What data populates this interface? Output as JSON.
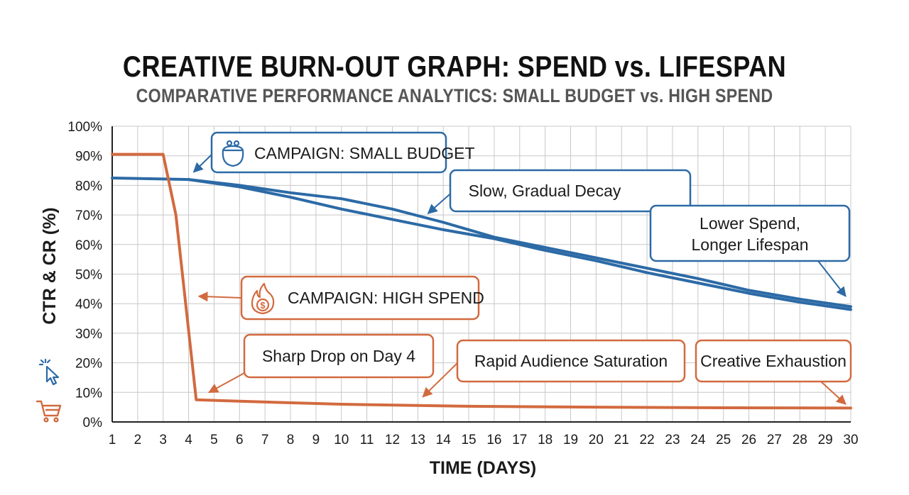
{
  "title": "CREATIVE BURN-OUT GRAPH: SPEND vs. LIFESPAN",
  "subtitle": "COMPARATIVE PERFORMANCE ANALYTICS: SMALL BUDGET vs. HIGH SPEND",
  "colors": {
    "small_budget": "#2c6aa6",
    "high_spend": "#d26a3f",
    "grid": "#c8c8c8",
    "axis": "#222222"
  },
  "icons": {
    "small_budget_callout": "coin-purse-icon",
    "high_spend_callout": "flame-dollar-icon",
    "side_click": "cursor-click-icon",
    "side_cart": "shopping-cart-icon"
  },
  "chart_data": {
    "type": "line",
    "title": "CREATIVE BURN-OUT GRAPH: SPEND vs. LIFESPAN",
    "subtitle": "COMPARATIVE PERFORMANCE ANALYTICS: SMALL BUDGET vs. HIGH SPEND",
    "xlabel": "TIME (DAYS)",
    "ylabel": "CTR & CR (%)",
    "xlim": [
      1,
      30
    ],
    "ylim": [
      0,
      100
    ],
    "x_ticks": [
      1,
      2,
      3,
      4,
      5,
      6,
      7,
      8,
      9,
      10,
      11,
      12,
      13,
      14,
      15,
      16,
      17,
      18,
      19,
      20,
      21,
      22,
      23,
      24,
      25,
      26,
      27,
      28,
      29,
      30
    ],
    "y_ticks": [
      0,
      10,
      20,
      30,
      40,
      50,
      60,
      70,
      80,
      90,
      100
    ],
    "y_tick_labels": [
      "0%",
      "10%",
      "20%",
      "30%",
      "40%",
      "50%",
      "60%",
      "70%",
      "80%",
      "90%",
      "100%"
    ],
    "grid": true,
    "series": [
      {
        "key": "small_budget_a",
        "color": "#2c6aa6",
        "x": [
          1,
          4,
          6,
          8,
          10,
          12,
          14,
          16,
          18,
          20,
          22,
          24,
          26,
          28,
          30
        ],
        "y": [
          82.5,
          82,
          79.5,
          76,
          72,
          68.5,
          65,
          62,
          58,
          54.5,
          50.5,
          47,
          43.5,
          40.5,
          38
        ]
      },
      {
        "key": "small_budget_b",
        "color": "#2c6aa6",
        "x": [
          4,
          6,
          8,
          10,
          12,
          14,
          16,
          18,
          20,
          22,
          24,
          26,
          28,
          30
        ],
        "y": [
          82,
          80,
          77.5,
          75.5,
          72,
          67.5,
          62.5,
          59,
          55.5,
          52,
          48.5,
          44.5,
          41.5,
          39
        ]
      },
      {
        "key": "high_spend",
        "color": "#d26a3f",
        "x": [
          1,
          3,
          3.5,
          4.3,
          6,
          10,
          15,
          20,
          25,
          30
        ],
        "y": [
          90.5,
          90.5,
          70,
          7.5,
          7,
          6,
          5.3,
          5,
          4.8,
          4.7
        ]
      }
    ],
    "annotations": [
      {
        "id": "small_budget",
        "text_lines": [
          "CAMPAIGN: SMALL BUDGET"
        ],
        "color": "#2c6aa6",
        "target": [
          4.2,
          84.5
        ]
      },
      {
        "id": "slow_decay",
        "text_lines": [
          "Slow, Gradual Decay"
        ],
        "color": "#2c6aa6",
        "target": [
          13.4,
          70.5
        ]
      },
      {
        "id": "lower_spend",
        "text_lines": [
          "Lower Spend,",
          "Longer Lifespan"
        ],
        "color": "#2c6aa6",
        "target": [
          29.8,
          42.5
        ]
      },
      {
        "id": "high_spend",
        "text_lines": [
          "CAMPAIGN: HIGH SPEND"
        ],
        "color": "#d26a3f",
        "target": [
          4.4,
          42.5
        ]
      },
      {
        "id": "sharp_drop",
        "text_lines": [
          "Sharp Drop on Day 4"
        ],
        "color": "#d26a3f",
        "target": [
          4.8,
          10
        ]
      },
      {
        "id": "saturation",
        "text_lines": [
          "Rapid Audience Saturation"
        ],
        "color": "#d26a3f",
        "target": [
          13.2,
          8.5
        ]
      },
      {
        "id": "exhaustion",
        "text_lines": [
          "Creative Exhaustion"
        ],
        "color": "#d26a3f",
        "target": [
          29.8,
          6
        ]
      }
    ]
  }
}
